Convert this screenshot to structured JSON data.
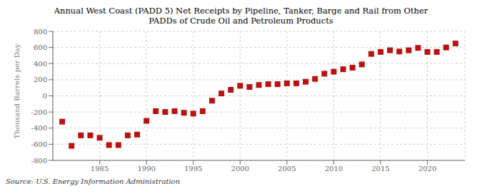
{
  "chart_data": {
    "type": "scatter",
    "title": "Annual West Coast (PADD 5) Net Receipts by Pipeline, Tanker, Barge and Rail from Other\nPADDs of Crude Oil and Petroleum Products",
    "ylabel": "Thousand Barrels per Day",
    "annotation": "Source: U.S. Energy Information Administration",
    "x": [
      1981,
      1982,
      1983,
      1984,
      1985,
      1986,
      1987,
      1988,
      1989,
      1990,
      1991,
      1992,
      1993,
      1994,
      1995,
      1996,
      1997,
      1998,
      1999,
      2000,
      2001,
      2002,
      2003,
      2004,
      2005,
      2006,
      2007,
      2008,
      2009,
      2010,
      2011,
      2012,
      2013,
      2014,
      2015,
      2016,
      2017,
      2018,
      2019,
      2020,
      2021,
      2022,
      2023
    ],
    "values": [
      -320,
      -620,
      -490,
      -490,
      -520,
      -610,
      -610,
      -490,
      -480,
      -310,
      -190,
      -200,
      -190,
      -210,
      -220,
      -190,
      -60,
      30,
      75,
      125,
      110,
      135,
      145,
      145,
      155,
      155,
      175,
      210,
      275,
      300,
      330,
      350,
      390,
      520,
      545,
      565,
      550,
      565,
      595,
      545,
      545,
      600,
      650
    ],
    "color": "#bb1111",
    "marker": "square",
    "xlim": [
      1980,
      2024
    ],
    "xticks": [
      1985,
      1990,
      1995,
      2000,
      2005,
      2010,
      2015,
      2020
    ],
    "ylim": [
      -800,
      800
    ],
    "yticks": [
      -800,
      -600,
      -400,
      -200,
      0,
      200,
      400,
      600,
      800
    ],
    "grid": true
  }
}
